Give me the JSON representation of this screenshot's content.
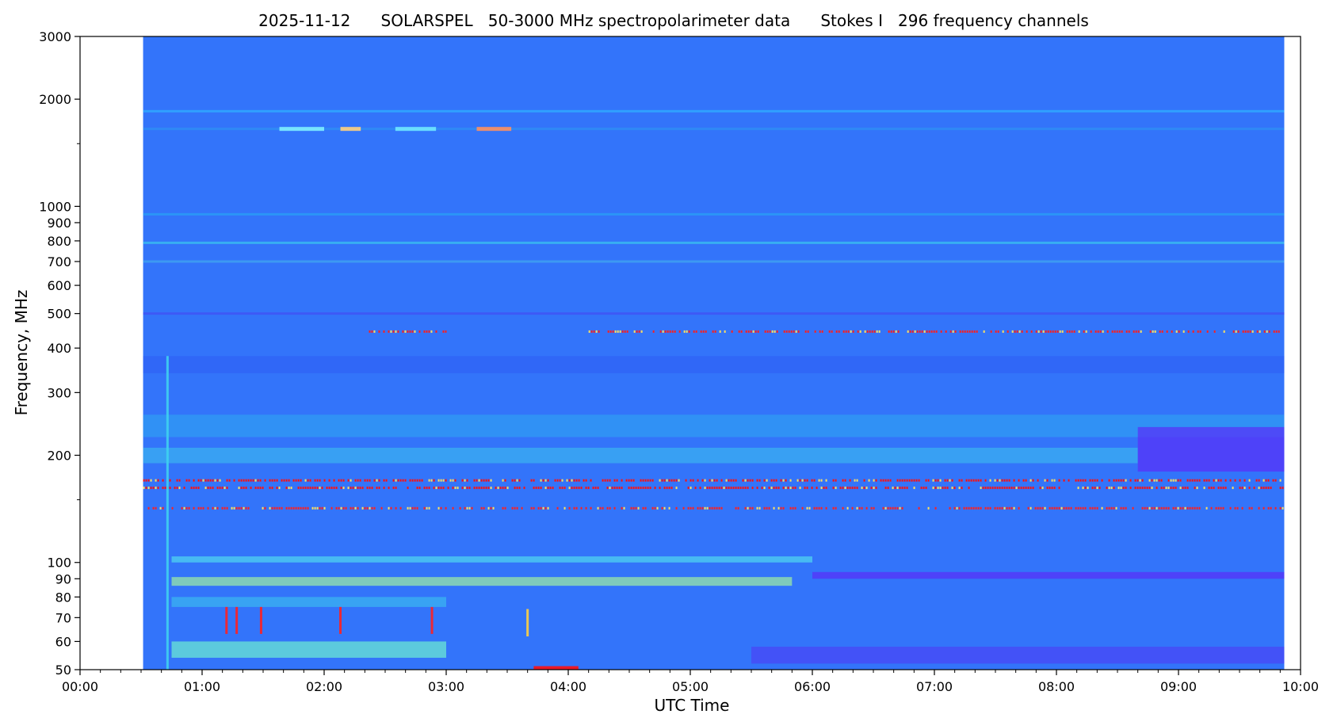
{
  "chart_data": {
    "type": "heatmap",
    "title": "2025-11-12      SOLARSPEL   50-3000 MHz spectropolarimeter data      Stokes I   296 frequency channels",
    "xlabel": "UTC Time",
    "ylabel": "Frequency, MHz",
    "x_scale": "time",
    "y_scale": "log",
    "xlim": [
      "00:00",
      "10:00"
    ],
    "ylim": [
      50,
      3000
    ],
    "data_extent": {
      "x": [
        "00:31",
        "09:52"
      ],
      "y": [
        50,
        3000
      ]
    },
    "x_ticks": [
      "00:00",
      "01:00",
      "02:00",
      "03:00",
      "04:00",
      "05:00",
      "06:00",
      "07:00",
      "08:00",
      "09:00",
      "10:00"
    ],
    "y_ticks": [
      50,
      60,
      70,
      80,
      90,
      100,
      200,
      300,
      400,
      500,
      600,
      700,
      800,
      900,
      1000,
      2000,
      3000
    ],
    "y_tick_labels": [
      "50",
      "60",
      "70",
      "80",
      "90",
      "100",
      "200",
      "300",
      "400",
      "500",
      "600",
      "700",
      "800",
      "900",
      "1000",
      "2000",
      "3000"
    ],
    "colormap": "jet",
    "background_color": "#3374fa",
    "grid": false,
    "features": [
      {
        "kind": "line",
        "freq": 1850,
        "t": [
          "00:31",
          "09:52"
        ],
        "color": "#30a8ff",
        "level": 0.35
      },
      {
        "kind": "line",
        "freq": 1650,
        "t": [
          "00:31",
          "09:52"
        ],
        "color": "#2f8df5",
        "level": 0.3
      },
      {
        "kind": "patch",
        "freq": 1650,
        "t": [
          "01:38",
          "02:00"
        ],
        "color": "#80f0ff",
        "level": 0.5
      },
      {
        "kind": "patch",
        "freq": 1650,
        "t": [
          "02:08",
          "02:18"
        ],
        "color": "#ffd080",
        "level": 0.7
      },
      {
        "kind": "patch",
        "freq": 1650,
        "t": [
          "02:35",
          "02:55"
        ],
        "color": "#70e8ff",
        "level": 0.5
      },
      {
        "kind": "patch",
        "freq": 1650,
        "t": [
          "03:15",
          "03:32"
        ],
        "color": "#ff9060",
        "level": 0.75
      },
      {
        "kind": "line",
        "freq": 950,
        "t": [
          "00:31",
          "09:52"
        ],
        "color": "#2a9af5",
        "level": 0.35
      },
      {
        "kind": "line",
        "freq": 790,
        "t": [
          "00:31",
          "09:52"
        ],
        "color": "#3ab8f0",
        "level": 0.35
      },
      {
        "kind": "line",
        "freq": 700,
        "t": [
          "00:31",
          "09:52"
        ],
        "color": "#3fa0f0",
        "level": 0.3
      },
      {
        "kind": "line",
        "freq": 500,
        "t": [
          "00:31",
          "09:52"
        ],
        "color": "#3f55f5",
        "level": 0.2
      },
      {
        "kind": "dots",
        "freq": 445,
        "t": [
          "02:22",
          "03:00"
        ],
        "color": "#ff2020",
        "level": 0.95
      },
      {
        "kind": "dots",
        "freq": 445,
        "t": [
          "04:10",
          "09:50"
        ],
        "color": "#ff2020",
        "level": 0.95
      },
      {
        "kind": "band",
        "freq": [
          340,
          380
        ],
        "t": [
          "00:31",
          "09:52"
        ],
        "color": "#2f62f5",
        "level": 0.2
      },
      {
        "kind": "band",
        "freq": [
          225,
          260
        ],
        "t": [
          "00:31",
          "09:52"
        ],
        "color": "#2f9ef2",
        "level": 0.35
      },
      {
        "kind": "band",
        "freq": [
          190,
          210
        ],
        "t": [
          "00:31",
          "08:40"
        ],
        "color": "#3ab3f0",
        "level": 0.4
      },
      {
        "kind": "band",
        "freq": [
          180,
          240
        ],
        "t": [
          "08:40",
          "09:52"
        ],
        "color": "#5a2ef8",
        "level": 0.1
      },
      {
        "kind": "dots",
        "freq": 170,
        "t": [
          "00:31",
          "09:52"
        ],
        "color": "#ff1010",
        "level": 0.95
      },
      {
        "kind": "dots",
        "freq": 162,
        "t": [
          "00:31",
          "09:52"
        ],
        "color": "#ff1010",
        "level": 1.0
      },
      {
        "kind": "dots",
        "freq": 142,
        "t": [
          "00:31",
          "09:52"
        ],
        "color": "#ff2020",
        "level": 0.9
      },
      {
        "kind": "band",
        "freq": [
          100,
          104
        ],
        "t": [
          "00:45",
          "06:00"
        ],
        "color": "#50d8f0",
        "level": 0.5
      },
      {
        "kind": "band",
        "freq": [
          86,
          91
        ],
        "t": [
          "00:45",
          "05:50"
        ],
        "color": "#9ff0a0",
        "level": 0.6
      },
      {
        "kind": "band",
        "freq": [
          90,
          94
        ],
        "t": [
          "06:00",
          "09:52"
        ],
        "color": "#5a2ef8",
        "level": 0.1
      },
      {
        "kind": "band",
        "freq": [
          75,
          80
        ],
        "t": [
          "00:45",
          "03:00"
        ],
        "color": "#3ab8f0",
        "level": 0.4
      },
      {
        "kind": "band",
        "freq": [
          54,
          60
        ],
        "t": [
          "00:45",
          "03:00"
        ],
        "color": "#6ef0d0",
        "level": 0.55
      },
      {
        "kind": "band",
        "freq": [
          52,
          58
        ],
        "t": [
          "05:30",
          "09:52"
        ],
        "color": "#4a45f5",
        "level": 0.15
      },
      {
        "kind": "patch",
        "freq": 50.5,
        "t": [
          "03:43",
          "04:05"
        ],
        "color": "#ff1010",
        "level": 1.0
      },
      {
        "kind": "spike",
        "freq": [
          63,
          75
        ],
        "t": "01:12",
        "color": "#ff2020",
        "level": 0.9
      },
      {
        "kind": "spike",
        "freq": [
          63,
          75
        ],
        "t": "01:17",
        "color": "#ff2020",
        "level": 0.9
      },
      {
        "kind": "spike",
        "freq": [
          63,
          75
        ],
        "t": "01:29",
        "color": "#ff2020",
        "level": 0.9
      },
      {
        "kind": "spike",
        "freq": [
          63,
          75
        ],
        "t": "02:08",
        "color": "#ff2020",
        "level": 0.9
      },
      {
        "kind": "spike",
        "freq": [
          63,
          75
        ],
        "t": "02:53",
        "color": "#ff2020",
        "level": 0.9
      },
      {
        "kind": "spike",
        "freq": [
          62,
          74
        ],
        "t": "03:40",
        "color": "#ffd040",
        "level": 0.8
      },
      {
        "kind": "spike",
        "freq": [
          50,
          380
        ],
        "t": "00:43",
        "color": "#3fd0f0",
        "level": 0.45
      }
    ]
  }
}
